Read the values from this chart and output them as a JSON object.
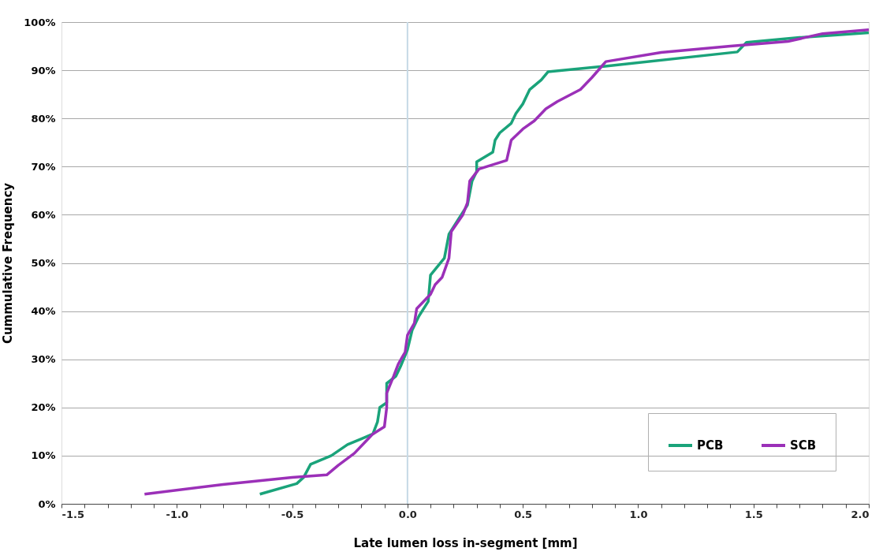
{
  "chart_data": {
    "type": "line",
    "xlabel": "Late lumen loss in-segment [mm]",
    "ylabel": "Cummulative Frequency",
    "xlim": [
      -1.5,
      2.0
    ],
    "xticks": [
      {
        "value": -1.5,
        "label": "-1.5"
      },
      {
        "value": -1.4,
        "label": null
      },
      {
        "value": -1.3,
        "label": null
      },
      {
        "value": -1.2,
        "label": null
      },
      {
        "value": -1.1,
        "label": null
      },
      {
        "value": -1.0,
        "label": "-1.0"
      },
      {
        "value": -0.9,
        "label": null
      },
      {
        "value": -0.8,
        "label": null
      },
      {
        "value": -0.7,
        "label": null
      },
      {
        "value": -0.6,
        "label": null
      },
      {
        "value": -0.5,
        "label": "-0.5"
      },
      {
        "value": -0.4,
        "label": null
      },
      {
        "value": -0.3,
        "label": null
      },
      {
        "value": -0.2,
        "label": null
      },
      {
        "value": -0.1,
        "label": null
      },
      {
        "value": 0,
        "label": "0.0"
      },
      {
        "value": 0.1,
        "label": null
      },
      {
        "value": 0.2,
        "label": null
      },
      {
        "value": 0.3,
        "label": null
      },
      {
        "value": 0.4,
        "label": null
      },
      {
        "value": 0.5,
        "label": "0.5"
      },
      {
        "value": 0.6,
        "label": null
      },
      {
        "value": 0.7,
        "label": null
      },
      {
        "value": 0.8,
        "label": null
      },
      {
        "value": 0.9,
        "label": null
      },
      {
        "value": 1.0,
        "label": "1.0"
      },
      {
        "value": 1.1,
        "label": null
      },
      {
        "value": 1.2,
        "label": null
      },
      {
        "value": 1.3,
        "label": null
      },
      {
        "value": 1.4,
        "label": null
      },
      {
        "value": 1.5,
        "label": "1.5"
      },
      {
        "value": 1.6,
        "label": null
      },
      {
        "value": 1.7,
        "label": null
      },
      {
        "value": 1.8,
        "label": null
      },
      {
        "value": 1.9,
        "label": null
      },
      {
        "value": 2.0,
        "label": "2.0"
      }
    ],
    "ylim": [
      0,
      100
    ],
    "yticks": [
      {
        "value": 0,
        "label": "0%"
      },
      {
        "value": 10,
        "label": "10%"
      },
      {
        "value": 20,
        "label": "20%"
      },
      {
        "value": 30,
        "label": "30%"
      },
      {
        "value": 40,
        "label": "40%"
      },
      {
        "value": 50,
        "label": "50%"
      },
      {
        "value": 60,
        "label": "60%"
      },
      {
        "value": 70,
        "label": "70%"
      },
      {
        "value": 80,
        "label": "80%"
      },
      {
        "value": 90,
        "label": "90%"
      },
      {
        "value": 100,
        "label": "100%"
      }
    ],
    "grid": "y",
    "legend": "bottom right",
    "marker": "none",
    "line_style": "solid",
    "ref_lines": [
      {
        "axis": "x",
        "value": 0,
        "label": null,
        "color": "#c5d9e6"
      }
    ],
    "series": [
      {
        "name": "PCB",
        "color": "#1aa37a",
        "x": [
          -0.64,
          -0.48,
          -0.45,
          -0.42,
          -0.33,
          -0.26,
          -0.2,
          -0.15,
          -0.13,
          -0.12,
          -0.09,
          -0.09,
          -0.05,
          -0.03,
          0.0,
          0.02,
          0.05,
          0.09,
          0.1,
          0.16,
          0.18,
          0.22,
          0.26,
          0.28,
          0.3,
          0.3,
          0.37,
          0.38,
          0.4,
          0.45,
          0.47,
          0.5,
          0.53,
          0.58,
          0.61,
          0.85,
          1.43,
          1.47,
          1.7,
          2.0
        ],
        "values": [
          2,
          4.2,
          5.5,
          8.2,
          10,
          12.3,
          13.5,
          14.5,
          17,
          20,
          21,
          25,
          26.5,
          28.5,
          32,
          36,
          39,
          42,
          47.5,
          51,
          56,
          59,
          62,
          67,
          69,
          71,
          73,
          75.5,
          77,
          79,
          81,
          83,
          86,
          88,
          89.7,
          90.8,
          93.8,
          95.8,
          96.8,
          97.8
        ]
      },
      {
        "name": "SCB",
        "color": "#9b30b8",
        "x": [
          -1.14,
          -0.8,
          -0.5,
          -0.35,
          -0.3,
          -0.23,
          -0.18,
          -0.15,
          -0.1,
          -0.09,
          -0.09,
          -0.06,
          -0.04,
          -0.01,
          0.0,
          0.03,
          0.04,
          0.08,
          0.1,
          0.12,
          0.15,
          0.18,
          0.19,
          0.24,
          0.26,
          0.27,
          0.31,
          0.43,
          0.45,
          0.5,
          0.55,
          0.6,
          0.65,
          0.75,
          0.8,
          0.86,
          1.1,
          1.4,
          1.65,
          1.8,
          2.0
        ],
        "values": [
          2,
          4,
          5.5,
          6,
          8,
          10.5,
          13,
          14.5,
          16,
          20,
          23,
          26.5,
          29,
          31.5,
          35,
          37.5,
          40.5,
          42.5,
          43.5,
          45.5,
          47,
          51,
          56.5,
          60,
          62.5,
          67,
          69.5,
          71.3,
          75.5,
          77.8,
          79.5,
          82,
          83.5,
          86,
          88.5,
          91.8,
          93.7,
          95,
          96,
          97.6,
          98.4
        ]
      }
    ]
  }
}
